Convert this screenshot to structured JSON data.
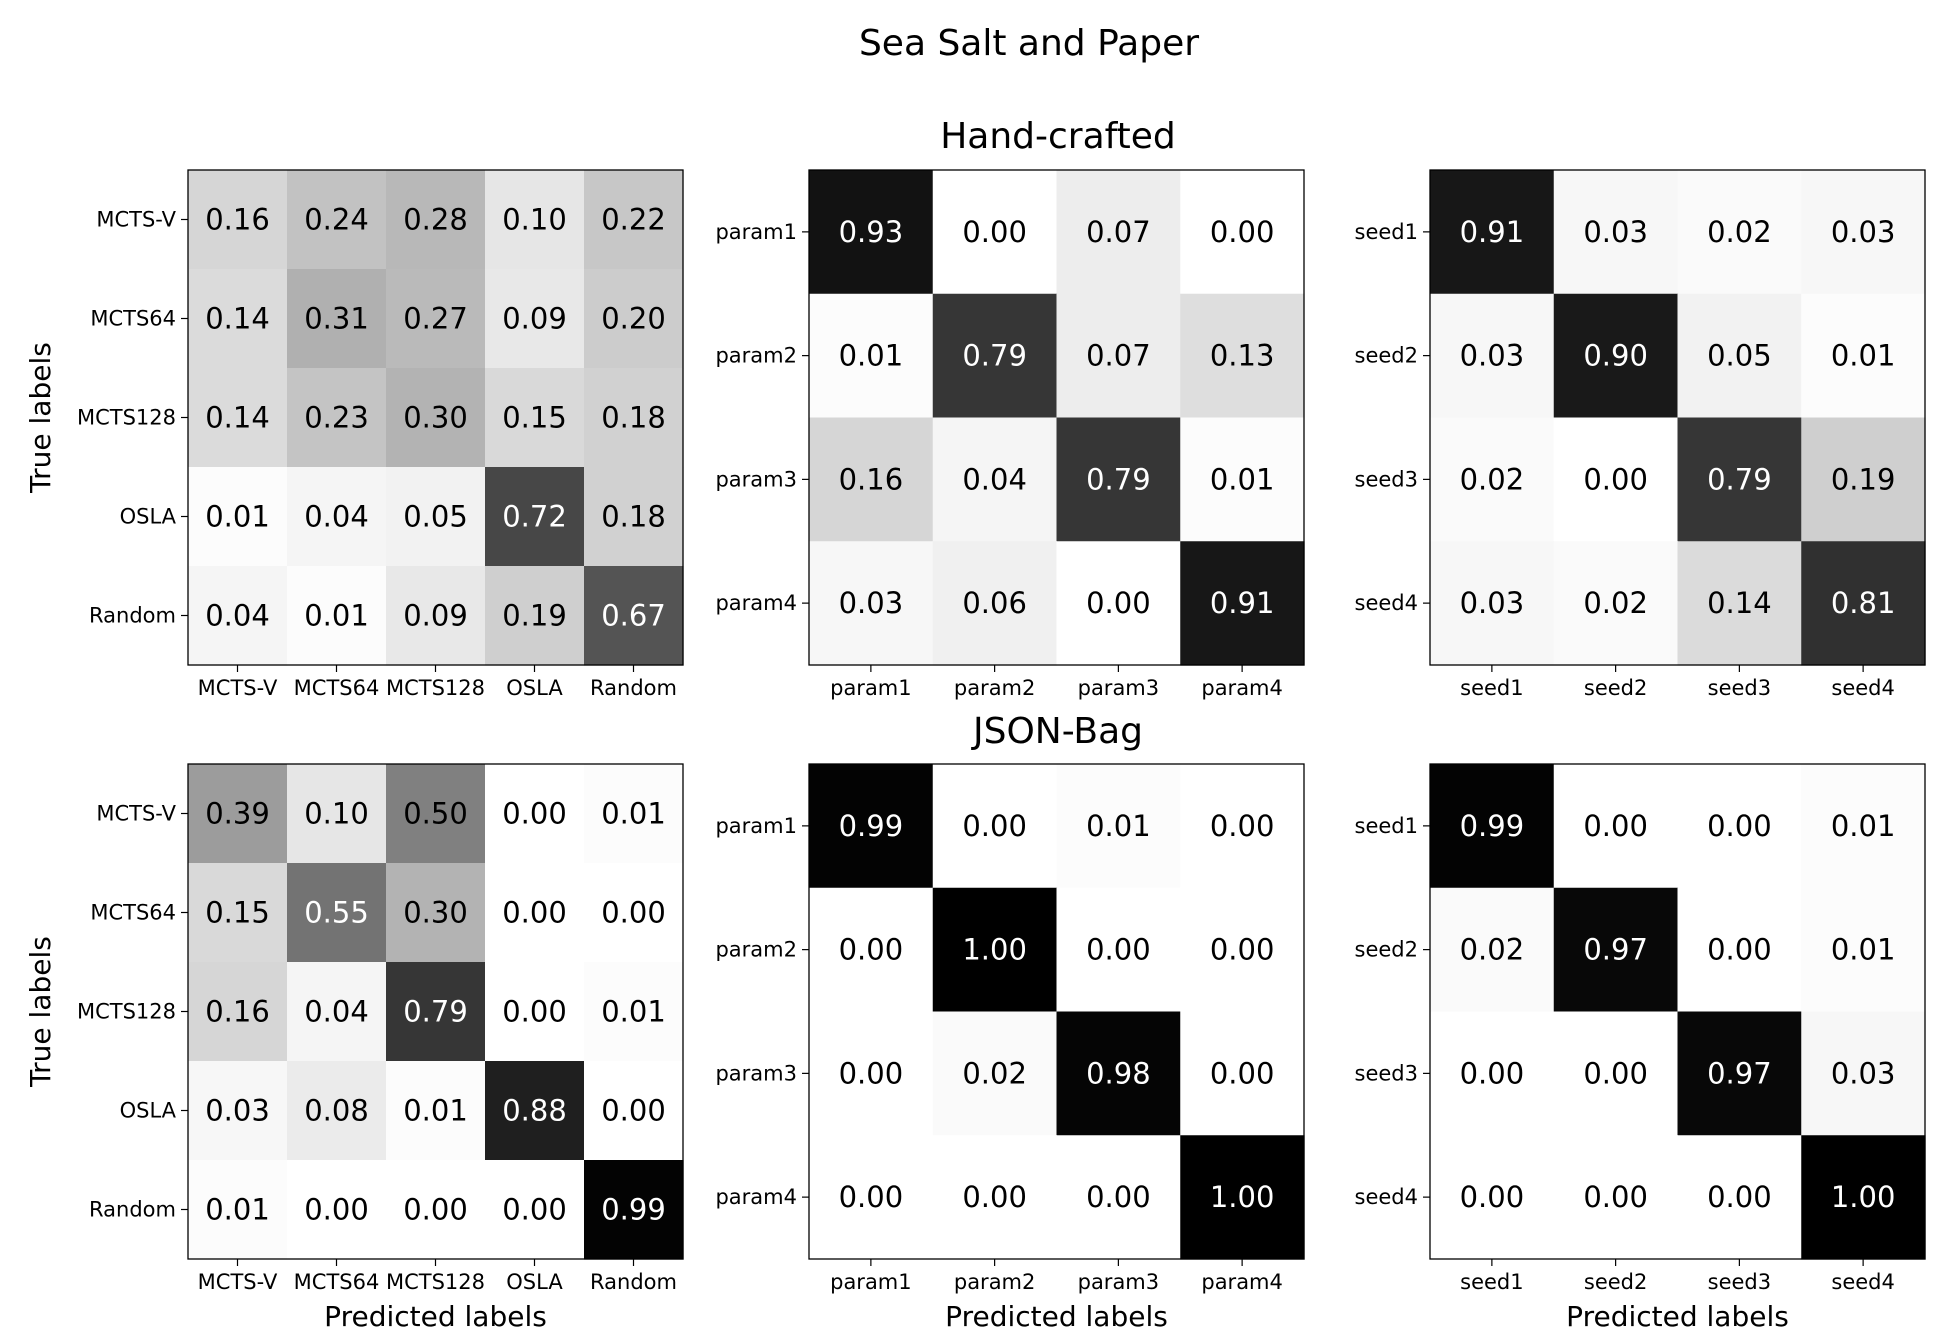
{
  "figure": {
    "title": "Sea Salt and Paper",
    "row_titles": [
      "Hand-crafted",
      "JSON-Bag"
    ],
    "colormap": "greys",
    "color_low": "#ffffff",
    "color_high": "#000000"
  },
  "chart_data": [
    {
      "type": "heatmap",
      "row_title": "Hand-crafted",
      "ylabel": "True labels",
      "xlabel": "",
      "x_categories": [
        "MCTS-V",
        "MCTS64",
        "MCTS128",
        "OSLA",
        "Random"
      ],
      "y_categories": [
        "MCTS-V",
        "MCTS64",
        "MCTS128",
        "OSLA",
        "Random"
      ],
      "values": [
        [
          0.16,
          0.24,
          0.28,
          0.1,
          0.22
        ],
        [
          0.14,
          0.31,
          0.27,
          0.09,
          0.2
        ],
        [
          0.14,
          0.23,
          0.3,
          0.15,
          0.18
        ],
        [
          0.01,
          0.04,
          0.05,
          0.72,
          0.18
        ],
        [
          0.04,
          0.01,
          0.09,
          0.19,
          0.67
        ]
      ]
    },
    {
      "type": "heatmap",
      "row_title": "Hand-crafted",
      "ylabel": "",
      "xlabel": "",
      "x_categories": [
        "param1",
        "param2",
        "param3",
        "param4"
      ],
      "y_categories": [
        "param1",
        "param2",
        "param3",
        "param4"
      ],
      "values": [
        [
          0.93,
          0.0,
          0.07,
          0.0
        ],
        [
          0.01,
          0.79,
          0.07,
          0.13
        ],
        [
          0.16,
          0.04,
          0.79,
          0.01
        ],
        [
          0.03,
          0.06,
          0.0,
          0.91
        ]
      ]
    },
    {
      "type": "heatmap",
      "row_title": "Hand-crafted",
      "ylabel": "",
      "xlabel": "",
      "x_categories": [
        "seed1",
        "seed2",
        "seed3",
        "seed4"
      ],
      "y_categories": [
        "seed1",
        "seed2",
        "seed3",
        "seed4"
      ],
      "values": [
        [
          0.91,
          0.03,
          0.02,
          0.03
        ],
        [
          0.03,
          0.9,
          0.05,
          0.01
        ],
        [
          0.02,
          0.0,
          0.79,
          0.19
        ],
        [
          0.03,
          0.02,
          0.14,
          0.81
        ]
      ]
    },
    {
      "type": "heatmap",
      "row_title": "JSON-Bag",
      "ylabel": "True labels",
      "xlabel": "Predicted labels",
      "x_categories": [
        "MCTS-V",
        "MCTS64",
        "MCTS128",
        "OSLA",
        "Random"
      ],
      "y_categories": [
        "MCTS-V",
        "MCTS64",
        "MCTS128",
        "OSLA",
        "Random"
      ],
      "values": [
        [
          0.39,
          0.1,
          0.5,
          0.0,
          0.01
        ],
        [
          0.15,
          0.55,
          0.3,
          0.0,
          0.0
        ],
        [
          0.16,
          0.04,
          0.79,
          0.0,
          0.01
        ],
        [
          0.03,
          0.08,
          0.01,
          0.88,
          0.0
        ],
        [
          0.01,
          0.0,
          0.0,
          0.0,
          0.99
        ]
      ]
    },
    {
      "type": "heatmap",
      "row_title": "JSON-Bag",
      "ylabel": "",
      "xlabel": "Predicted labels",
      "x_categories": [
        "param1",
        "param2",
        "param3",
        "param4"
      ],
      "y_categories": [
        "param1",
        "param2",
        "param3",
        "param4"
      ],
      "values": [
        [
          0.99,
          0.0,
          0.01,
          0.0
        ],
        [
          0.0,
          1.0,
          0.0,
          0.0
        ],
        [
          0.0,
          0.02,
          0.98,
          0.0
        ],
        [
          0.0,
          0.0,
          0.0,
          1.0
        ]
      ]
    },
    {
      "type": "heatmap",
      "row_title": "JSON-Bag",
      "ylabel": "",
      "xlabel": "Predicted labels",
      "x_categories": [
        "seed1",
        "seed2",
        "seed3",
        "seed4"
      ],
      "y_categories": [
        "seed1",
        "seed2",
        "seed3",
        "seed4"
      ],
      "values": [
        [
          0.99,
          0.0,
          0.0,
          0.01
        ],
        [
          0.02,
          0.97,
          0.0,
          0.01
        ],
        [
          0.0,
          0.0,
          0.97,
          0.03
        ],
        [
          0.0,
          0.0,
          0.0,
          1.0
        ]
      ]
    }
  ]
}
